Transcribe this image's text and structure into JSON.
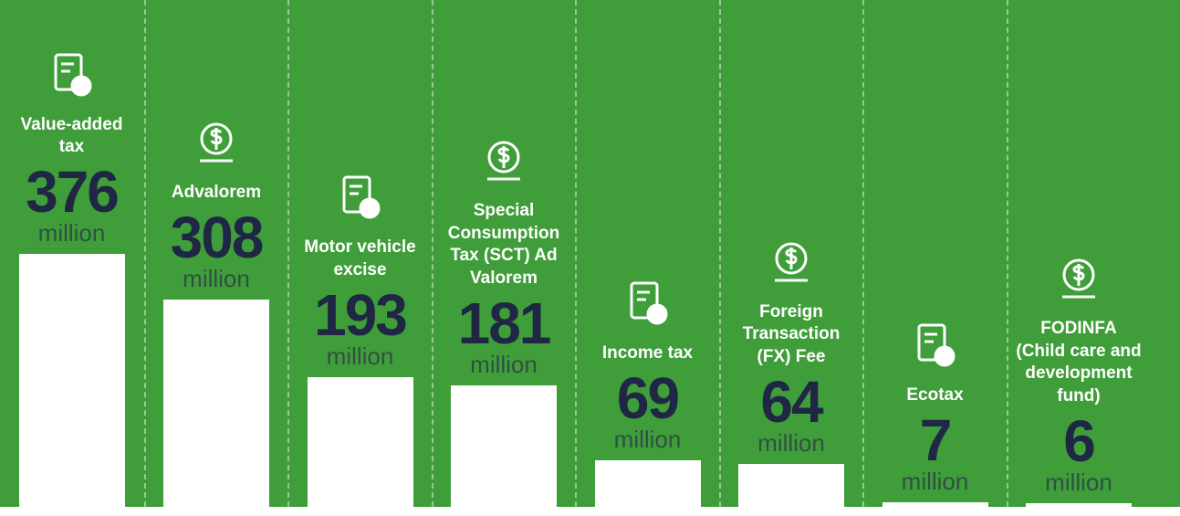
{
  "chart_data": {
    "type": "bar",
    "categories": [
      "Value-added tax",
      "Advalorem",
      "Motor vehicle excise",
      "Special Consumption Tax (SCT) Ad Valorem",
      "Income tax",
      "Foreign Transaction (FX) Fee",
      "Ecotax",
      "FODINFA (Child care and development fund)"
    ],
    "values": [
      376,
      308,
      193,
      181,
      69,
      64,
      7,
      6
    ],
    "unit": "million",
    "color": "#ffffff",
    "background": "#3f9e3a"
  }
}
